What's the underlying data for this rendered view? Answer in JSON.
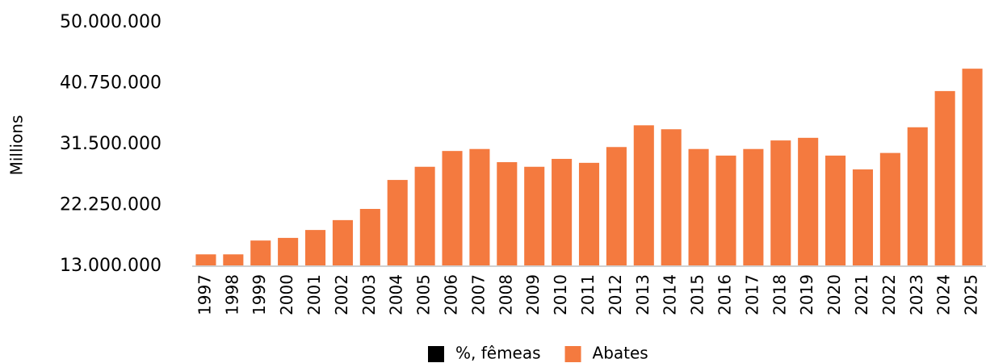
{
  "chart_data": {
    "type": "bar",
    "y_label": "Millions",
    "categories": [
      "1997",
      "1998",
      "1999",
      "2000",
      "2001",
      "2002",
      "2003",
      "2004",
      "2005",
      "2006",
      "2007",
      "2008",
      "2009",
      "2010",
      "2011",
      "2012",
      "2013",
      "2014",
      "2015",
      "2016",
      "2017",
      "2018",
      "2019",
      "2020",
      "2021",
      "2022",
      "2023",
      "2024",
      "2025"
    ],
    "series": [
      {
        "name": "%, fêmeas",
        "color": "#000000",
        "values": [
          null,
          null,
          null,
          null,
          null,
          null,
          null,
          null,
          null,
          null,
          null,
          null,
          null,
          null,
          null,
          null,
          null,
          null,
          null,
          null,
          null,
          null,
          null,
          null,
          null,
          null,
          null,
          null,
          null
        ]
      },
      {
        "name": "Abates",
        "color": "#f47a3f",
        "values": [
          14800000,
          14800000,
          16900000,
          17300000,
          18500000,
          20000000,
          21700000,
          26100000,
          28100000,
          30500000,
          30800000,
          28800000,
          28100000,
          29300000,
          28700000,
          31100000,
          34400000,
          33800000,
          30800000,
          29800000,
          30800000,
          32100000,
          32500000,
          29800000,
          27700000,
          30200000,
          34100000,
          39600000,
          43000000
        ]
      }
    ],
    "ylim": [
      13000000,
      50000000
    ],
    "yticks": [
      {
        "value": 13000000,
        "label": "13.000.000"
      },
      {
        "value": 22250000,
        "label": "22.250.000"
      },
      {
        "value": 31500000,
        "label": "31.500.000"
      },
      {
        "value": 40750000,
        "label": "40.750.000"
      },
      {
        "value": 50000000,
        "label": "50.000.000"
      }
    ],
    "grid": false,
    "legend": "bottom"
  }
}
